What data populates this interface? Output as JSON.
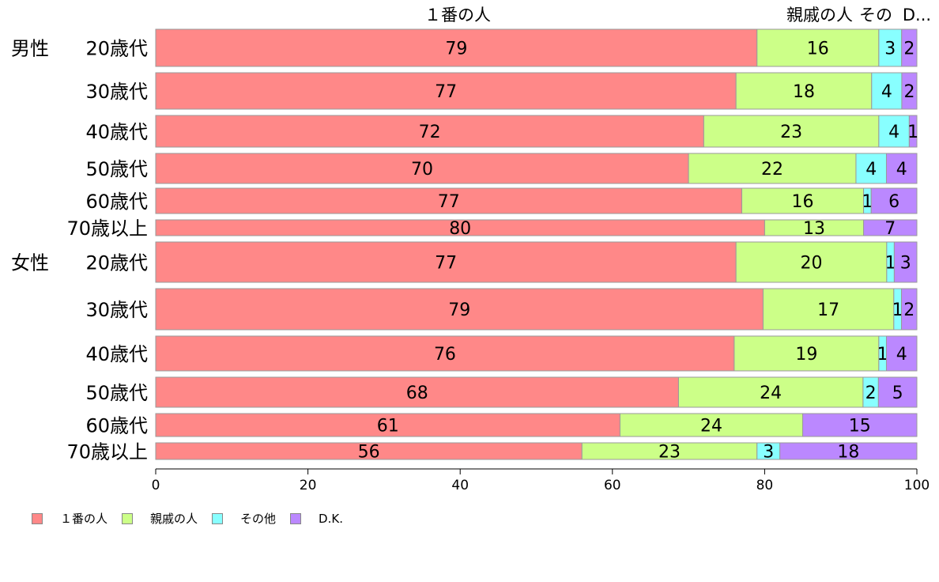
{
  "chart_data": {
    "type": "bar",
    "orientation": "horizontal",
    "stacked": true,
    "top_labels": [
      "１番の人",
      "親戚の人",
      "その",
      "D..."
    ],
    "groups": [
      "男性",
      "女性"
    ],
    "categories": [
      "20歳代",
      "30歳代",
      "40歳代",
      "50歳代",
      "60歳代",
      "70歳以上",
      "20歳代",
      "30歳代",
      "40歳代",
      "50歳代",
      "60歳代",
      "70歳以上"
    ],
    "category_group": [
      0,
      0,
      0,
      0,
      0,
      0,
      1,
      1,
      1,
      1,
      1,
      1
    ],
    "series": [
      {
        "name": "１番の人",
        "color": "#FF8888",
        "values": [
          79,
          77,
          72,
          70,
          77,
          80,
          77,
          79,
          76,
          68,
          61,
          56
        ]
      },
      {
        "name": "親戚の人",
        "color": "#CCFF88",
        "values": [
          16,
          18,
          23,
          22,
          16,
          13,
          20,
          17,
          19,
          24,
          24,
          23
        ]
      },
      {
        "name": "その他",
        "color": "#88FFFF",
        "values": [
          3,
          4,
          4,
          4,
          1,
          0,
          1,
          1,
          1,
          2,
          0,
          3
        ]
      },
      {
        "name": "D.K.",
        "color": "#BB88FF",
        "values": [
          2,
          2,
          1,
          4,
          6,
          7,
          3,
          2,
          4,
          5,
          15,
          18
        ]
      }
    ],
    "xlim": [
      0,
      100
    ],
    "xticks": [
      "0",
      "20",
      "40",
      "60",
      "80",
      "100"
    ],
    "legend_position": "bottom-left"
  }
}
